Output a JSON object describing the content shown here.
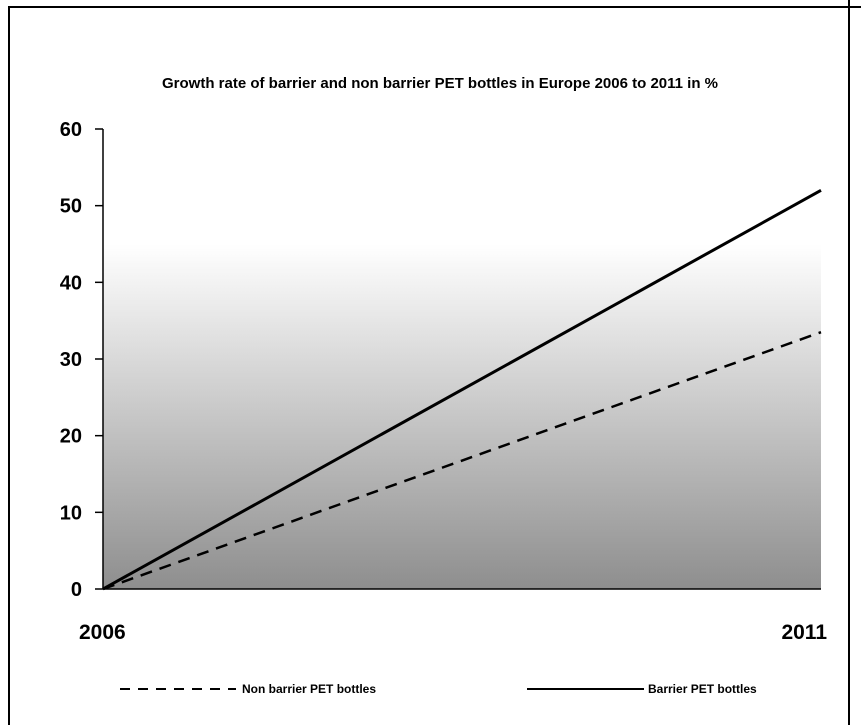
{
  "chart_data": {
    "type": "line",
    "title": "Growth rate of barrier and non barrier PET bottles in Europe 2006 to 2011 in %",
    "xlabel": "",
    "ylabel": "",
    "x": [
      "2006",
      "2011"
    ],
    "ylim": [
      0,
      60
    ],
    "yticks": [
      "0",
      "10",
      "20",
      "30",
      "40",
      "50",
      "60"
    ],
    "grid": false,
    "legend_position": "bottom",
    "background": "gradient white-to-gray",
    "series": [
      {
        "name": "Non barrier PET bottles",
        "values": [
          0,
          33.5
        ],
        "style": "dashed",
        "color": "#000000"
      },
      {
        "name": "Barrier PET bottles",
        "values": [
          0,
          52
        ],
        "style": "solid",
        "color": "#000000"
      }
    ]
  }
}
